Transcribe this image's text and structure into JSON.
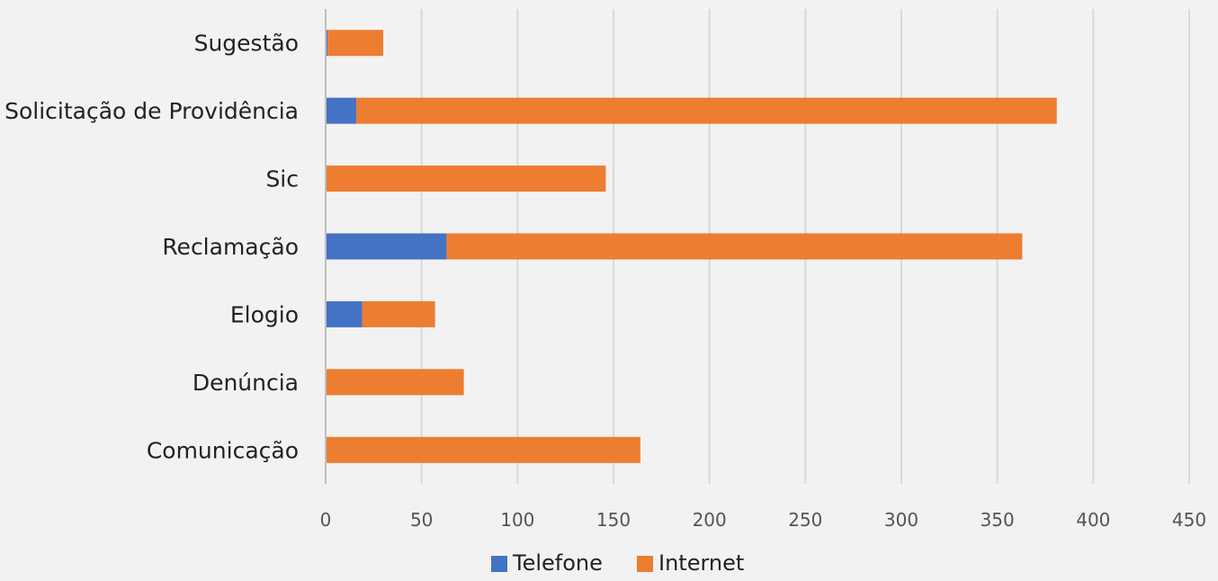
{
  "chart_data": {
    "type": "bar",
    "orientation": "horizontal",
    "stacked": true,
    "categories": [
      "Comunicação",
      "Denúncia",
      "Elogio",
      "Reclamação",
      "Sic",
      "Solicitação de Providência",
      "Sugestão"
    ],
    "series": [
      {
        "name": "Telefone",
        "color": "#4472c4",
        "values": [
          0,
          0,
          19,
          63,
          0,
          16,
          1
        ]
      },
      {
        "name": "Internet",
        "color": "#ed7d31",
        "values": [
          164,
          72,
          38,
          300,
          146,
          365,
          29
        ]
      }
    ],
    "xlim": [
      0,
      450
    ],
    "xticks": [
      0,
      50,
      100,
      150,
      200,
      250,
      300,
      350,
      400,
      450
    ],
    "grid": true,
    "legend_position": "bottom",
    "title": "",
    "xlabel": "",
    "ylabel": ""
  }
}
